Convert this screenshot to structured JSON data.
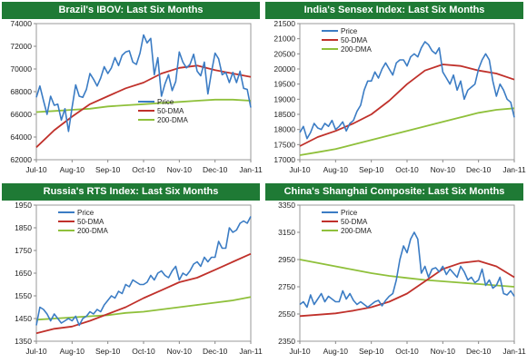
{
  "chart_data": [
    {
      "type": "line",
      "title": "Brazil's IBOV: Last Six Months",
      "xlabel": "",
      "ylabel": "",
      "x_ticks": [
        "Jul-10",
        "Aug-10",
        "Sep-10",
        "Oct-10",
        "Nov-10",
        "Dec-10",
        "Jan-11"
      ],
      "y_ticks": [
        62000,
        64000,
        66000,
        68000,
        70000,
        72000,
        74000
      ],
      "ylim": [
        62000,
        74000
      ],
      "grid": false,
      "legend_position": "center-right",
      "series": [
        {
          "name": "Price",
          "color": "#3b7cc4",
          "x": [
            0,
            0.1,
            0.2,
            0.3,
            0.4,
            0.5,
            0.6,
            0.7,
            0.8,
            0.9,
            1,
            1.1,
            1.2,
            1.3,
            1.4,
            1.5,
            1.6,
            1.7,
            1.8,
            1.9,
            2,
            2.1,
            2.2,
            2.3,
            2.4,
            2.5,
            2.6,
            2.7,
            2.8,
            2.9,
            3,
            3.1,
            3.2,
            3.3,
            3.4,
            3.5,
            3.6,
            3.7,
            3.8,
            3.9,
            4,
            4.1,
            4.2,
            4.3,
            4.4,
            4.5,
            4.6,
            4.7,
            4.8,
            4.9,
            5,
            5.1,
            5.2,
            5.3,
            5.4,
            5.5,
            5.6,
            5.7,
            5.8,
            5.9,
            6
          ],
          "y": [
            67500,
            68500,
            67200,
            66000,
            67600,
            66800,
            66900,
            65500,
            66500,
            64500,
            66600,
            68600,
            67600,
            67500,
            68200,
            69600,
            69100,
            68500,
            69200,
            70200,
            69600,
            70100,
            71000,
            70300,
            71200,
            71500,
            71600,
            70600,
            70400,
            71400,
            73000,
            72300,
            72700,
            69500,
            71000,
            67600,
            68700,
            69500,
            68100,
            68900,
            71500,
            70600,
            70100,
            70400,
            71300,
            69800,
            69400,
            70600,
            67800,
            69700,
            71400,
            70900,
            69500,
            69700,
            68800,
            69700,
            68800,
            69800,
            68300,
            68200,
            66600
          ]
        },
        {
          "name": "50-DMA",
          "color": "#c0312b",
          "x": [
            0,
            0.5,
            1,
            1.5,
            2,
            2.5,
            3,
            3.5,
            4,
            4.5,
            5,
            5.5,
            6
          ],
          "y": [
            63100,
            64600,
            65800,
            66900,
            67600,
            68300,
            68800,
            69600,
            70100,
            70300,
            69900,
            69600,
            69300
          ]
        },
        {
          "name": "200-DMA",
          "color": "#8fc03b",
          "x": [
            0,
            0.5,
            1,
            1.5,
            2,
            2.5,
            3,
            3.5,
            4,
            4.5,
            5,
            5.5,
            6
          ],
          "y": [
            66200,
            66300,
            66400,
            66500,
            66700,
            66800,
            66900,
            67000,
            67100,
            67200,
            67300,
            67300,
            67200
          ]
        }
      ]
    },
    {
      "type": "line",
      "title": "India's Sensex Index: Last Six Months",
      "xlabel": "",
      "ylabel": "",
      "x_ticks": [
        "Jul-10",
        "Aug-10",
        "Sep-10",
        "Oct-10",
        "Nov-10",
        "Dec-10",
        "Jan-11"
      ],
      "y_ticks": [
        17000,
        17500,
        18000,
        18500,
        19000,
        19500,
        20000,
        20500,
        21000,
        21500
      ],
      "ylim": [
        17000,
        21500
      ],
      "grid": false,
      "legend_position": "top-left",
      "series": [
        {
          "name": "Price",
          "color": "#3b7cc4",
          "x": [
            0,
            0.1,
            0.2,
            0.3,
            0.4,
            0.5,
            0.6,
            0.7,
            0.8,
            0.9,
            1,
            1.1,
            1.2,
            1.3,
            1.4,
            1.5,
            1.6,
            1.7,
            1.8,
            1.9,
            2,
            2.1,
            2.2,
            2.3,
            2.4,
            2.5,
            2.6,
            2.7,
            2.8,
            2.9,
            3,
            3.1,
            3.2,
            3.3,
            3.4,
            3.5,
            3.6,
            3.7,
            3.8,
            3.9,
            4,
            4.1,
            4.2,
            4.3,
            4.4,
            4.5,
            4.6,
            4.7,
            4.8,
            4.9,
            5,
            5.1,
            5.2,
            5.3,
            5.4,
            5.5,
            5.6,
            5.7,
            5.8,
            5.9,
            6
          ],
          "y": [
            17900,
            18100,
            17700,
            17900,
            18200,
            18050,
            18000,
            18200,
            18100,
            18300,
            18000,
            18100,
            18250,
            17950,
            18200,
            18300,
            18600,
            18800,
            19300,
            19600,
            19600,
            19900,
            19700,
            20000,
            20200,
            20000,
            19800,
            20200,
            20300,
            20300,
            20100,
            20400,
            20500,
            20400,
            20700,
            20900,
            20800,
            20600,
            20500,
            20700,
            19900,
            19700,
            19500,
            19800,
            19300,
            19600,
            19000,
            19300,
            19400,
            19500,
            20000,
            20300,
            20500,
            20300,
            19600,
            19100,
            19500,
            19300,
            19000,
            18900,
            18400
          ]
        },
        {
          "name": "50-DMA",
          "color": "#c0312b",
          "x": [
            0,
            0.5,
            1,
            1.5,
            2,
            2.5,
            3,
            3.5,
            4,
            4.5,
            5,
            5.5,
            6
          ],
          "y": [
            17450,
            17750,
            17950,
            18200,
            18500,
            18950,
            19500,
            19950,
            20150,
            20100,
            19950,
            19850,
            19650
          ]
        },
        {
          "name": "200-DMA",
          "color": "#8fc03b",
          "x": [
            0,
            0.5,
            1,
            1.5,
            2,
            2.5,
            3,
            3.5,
            4,
            4.5,
            5,
            5.5,
            6
          ],
          "y": [
            17150,
            17250,
            17350,
            17500,
            17650,
            17800,
            17950,
            18100,
            18250,
            18400,
            18550,
            18650,
            18700
          ]
        }
      ]
    },
    {
      "type": "line",
      "title": "Russia's RTS Index: Last Six Months",
      "xlabel": "",
      "ylabel": "",
      "x_ticks": [
        "Jul-10",
        "Aug-10",
        "Sep-10",
        "Oct-10",
        "Nov-10",
        "Dec-10",
        "Jan-11"
      ],
      "y_ticks": [
        1350,
        1450,
        1550,
        1650,
        1750,
        1850,
        1950
      ],
      "ylim": [
        1350,
        1950
      ],
      "grid": false,
      "legend_position": "top-left",
      "series": [
        {
          "name": "Price",
          "color": "#3b7cc4",
          "x": [
            0,
            0.1,
            0.2,
            0.3,
            0.4,
            0.5,
            0.6,
            0.7,
            0.8,
            0.9,
            1,
            1.1,
            1.2,
            1.3,
            1.4,
            1.5,
            1.6,
            1.7,
            1.8,
            1.9,
            2,
            2.1,
            2.2,
            2.3,
            2.4,
            2.5,
            2.6,
            2.7,
            2.8,
            2.9,
            3,
            3.1,
            3.2,
            3.3,
            3.4,
            3.5,
            3.6,
            3.7,
            3.8,
            3.9,
            4,
            4.1,
            4.2,
            4.3,
            4.4,
            4.5,
            4.6,
            4.7,
            4.8,
            4.9,
            5,
            5.1,
            5.2,
            5.3,
            5.4,
            5.5,
            5.6,
            5.7,
            5.8,
            5.9,
            6
          ],
          "y": [
            1420,
            1500,
            1490,
            1470,
            1440,
            1470,
            1450,
            1430,
            1440,
            1450,
            1440,
            1460,
            1420,
            1450,
            1460,
            1480,
            1470,
            1490,
            1480,
            1510,
            1530,
            1550,
            1540,
            1570,
            1560,
            1600,
            1590,
            1620,
            1610,
            1600,
            1600,
            1610,
            1640,
            1620,
            1650,
            1660,
            1640,
            1630,
            1660,
            1680,
            1620,
            1650,
            1640,
            1660,
            1690,
            1700,
            1680,
            1720,
            1700,
            1720,
            1720,
            1790,
            1760,
            1760,
            1850,
            1830,
            1840,
            1870,
            1880,
            1870,
            1900
          ]
        },
        {
          "name": "50-DMA",
          "color": "#c0312b",
          "x": [
            0,
            0.5,
            1,
            1.5,
            2,
            2.5,
            3,
            3.5,
            4,
            4.5,
            5,
            5.5,
            6
          ],
          "y": [
            1385,
            1405,
            1415,
            1440,
            1470,
            1500,
            1540,
            1575,
            1610,
            1630,
            1665,
            1700,
            1735
          ]
        },
        {
          "name": "200-DMA",
          "color": "#8fc03b",
          "x": [
            0,
            0.5,
            1,
            1.5,
            2,
            2.5,
            3,
            3.5,
            4,
            4.5,
            5,
            5.5,
            6
          ],
          "y": [
            1445,
            1450,
            1455,
            1460,
            1465,
            1475,
            1480,
            1490,
            1500,
            1510,
            1520,
            1530,
            1545
          ]
        }
      ]
    },
    {
      "type": "line",
      "title": "China's Shanghai Composite: Last Six Months",
      "xlabel": "",
      "ylabel": "",
      "x_ticks": [
        "Jul-10",
        "Aug-10",
        "Sep-10",
        "Oct-10",
        "Nov-10",
        "Dec-10",
        "Jan-11"
      ],
      "y_ticks": [
        2350,
        2550,
        2750,
        2950,
        3150,
        3350
      ],
      "ylim": [
        2350,
        3350
      ],
      "grid": false,
      "legend_position": "top-left",
      "series": [
        {
          "name": "Price",
          "color": "#3b7cc4",
          "x": [
            0,
            0.1,
            0.2,
            0.3,
            0.4,
            0.5,
            0.6,
            0.7,
            0.8,
            0.9,
            1,
            1.1,
            1.2,
            1.3,
            1.4,
            1.5,
            1.6,
            1.7,
            1.8,
            1.9,
            2,
            2.1,
            2.2,
            2.3,
            2.4,
            2.5,
            2.6,
            2.7,
            2.8,
            2.9,
            3,
            3.1,
            3.2,
            3.3,
            3.4,
            3.5,
            3.6,
            3.7,
            3.8,
            3.9,
            4,
            4.1,
            4.2,
            4.3,
            4.4,
            4.5,
            4.6,
            4.7,
            4.8,
            4.9,
            5,
            5.1,
            5.2,
            5.3,
            5.4,
            5.5,
            5.6,
            5.7,
            5.8,
            5.9,
            6
          ],
          "y": [
            2620,
            2640,
            2600,
            2690,
            2620,
            2660,
            2700,
            2640,
            2680,
            2660,
            2640,
            2640,
            2720,
            2660,
            2700,
            2650,
            2620,
            2640,
            2620,
            2600,
            2620,
            2640,
            2650,
            2610,
            2650,
            2680,
            2700,
            2800,
            2950,
            3050,
            3000,
            3100,
            3150,
            3100,
            2850,
            2900,
            2820,
            2880,
            2890,
            2860,
            2900,
            2840,
            2880,
            2850,
            2820,
            2900,
            2860,
            2800,
            2820,
            2780,
            2800,
            2880,
            2760,
            2800,
            2740,
            2760,
            2820,
            2700,
            2690,
            2720,
            2680
          ]
        },
        {
          "name": "50-DMA",
          "color": "#c0312b",
          "x": [
            0,
            0.5,
            1,
            1.5,
            2,
            2.5,
            3,
            3.5,
            4,
            4.5,
            5,
            5.5,
            6
          ],
          "y": [
            2535,
            2545,
            2555,
            2575,
            2600,
            2640,
            2700,
            2790,
            2880,
            2925,
            2940,
            2900,
            2820
          ]
        },
        {
          "name": "200-DMA",
          "color": "#8fc03b",
          "x": [
            0,
            0.5,
            1,
            1.5,
            2,
            2.5,
            3,
            3.5,
            4,
            4.5,
            5,
            5.5,
            6
          ],
          "y": [
            2950,
            2925,
            2900,
            2875,
            2850,
            2830,
            2815,
            2800,
            2790,
            2780,
            2770,
            2760,
            2750
          ]
        }
      ]
    }
  ]
}
